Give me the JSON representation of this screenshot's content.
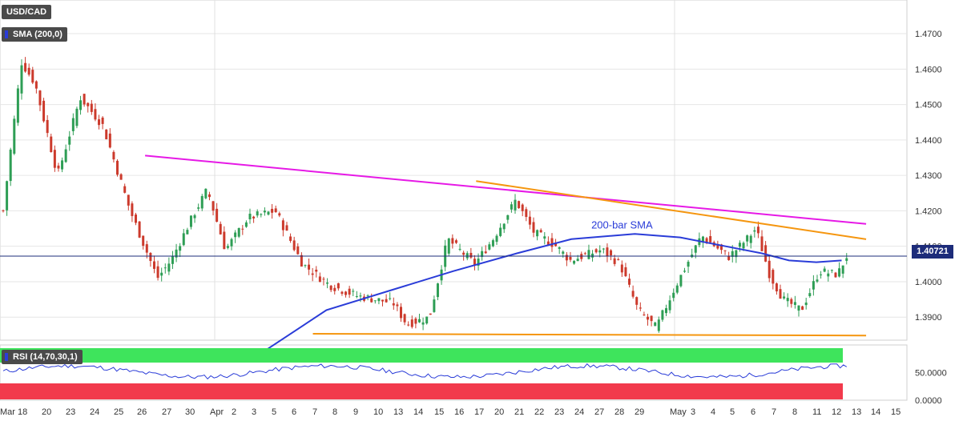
{
  "chart_data": [
    {
      "type": "candlestick",
      "title": "USD/CAD",
      "indicator_label": "SMA (200,0)",
      "annotation": "200-bar SMA",
      "last_price_label": "1.40721",
      "last_price": 1.40721,
      "ylim": [
        1.3835,
        1.4795
      ],
      "y_ticks": [
        "1.3900",
        "1.4000",
        "1.4100",
        "1.4200",
        "1.4300",
        "1.4400",
        "1.4500",
        "1.4600",
        "1.4700"
      ],
      "x_ticks": [
        "Mar 18",
        "20",
        "23",
        "24",
        "25",
        "26",
        "27",
        "30",
        "Apr",
        "2",
        "3",
        "5",
        "6",
        "7",
        "8",
        "9",
        "10",
        "13",
        "14",
        "15",
        "16",
        "17",
        "20",
        "21",
        "22",
        "23",
        "24",
        "27",
        "28",
        "29",
        "May",
        "3",
        "4",
        "5",
        "6",
        "7",
        "8",
        "11",
        "12",
        "13",
        "14",
        "15"
      ],
      "trendlines": [
        {
          "name": "resistance-magenta",
          "color": "#e619e6",
          "from": [
            0.16,
            1.4356
          ],
          "to": [
            0.955,
            1.4163
          ]
        },
        {
          "name": "resistance-orange",
          "color": "#f5960f",
          "from": [
            0.525,
            1.4284
          ],
          "to": [
            0.955,
            1.412
          ]
        },
        {
          "name": "support-orange",
          "color": "#f5960f",
          "from": [
            0.345,
            1.3853
          ],
          "to": [
            0.955,
            1.3848
          ]
        }
      ],
      "grid": true,
      "sma_color": "#2a3cd8",
      "up_color": "#2e9e55",
      "down_color": "#cc3a2c"
    },
    {
      "type": "line",
      "title": "RSI (14,70,30,1)",
      "ylim": [
        0,
        100
      ],
      "y_ticks": [
        "0.0000",
        "50.0000"
      ],
      "overbought": 70,
      "oversold": 30,
      "overbought_color": "#3ee45c",
      "oversold_color": "#f23a4c",
      "line_color": "#2a3cd8"
    }
  ]
}
